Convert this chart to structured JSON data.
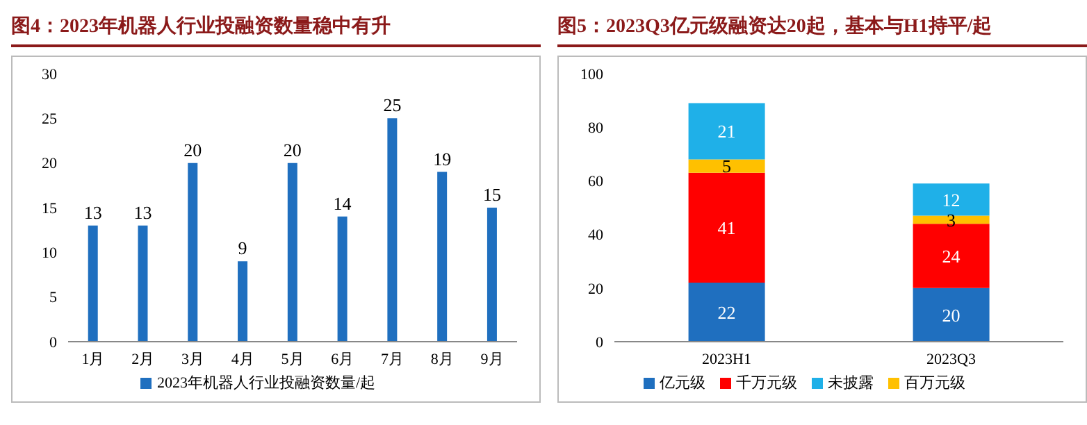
{
  "chart_data": [
    {
      "type": "bar",
      "title": "图4：2023年机器人行业投融资数量稳中有升",
      "categories": [
        "1月",
        "2月",
        "3月",
        "4月",
        "5月",
        "6月",
        "7月",
        "8月",
        "9月"
      ],
      "series": [
        {
          "name": "2023年机器人行业投融资数量/起",
          "color": "#1f6fbf",
          "values": [
            13,
            13,
            20,
            9,
            20,
            14,
            25,
            19,
            15
          ]
        }
      ],
      "ylim": [
        0,
        30
      ],
      "yticks": [
        0,
        5,
        10,
        15,
        20,
        25,
        30
      ],
      "data_labels": true,
      "legend": "bottom",
      "grid": false
    },
    {
      "type": "bar",
      "title": "图5：2023Q3亿元级融资达20起，基本与H1持平/起",
      "categories": [
        "2023H1",
        "2023Q3"
      ],
      "stacked": true,
      "series": [
        {
          "name": "亿元级",
          "color": "#1f6fbf",
          "values": [
            22,
            20
          ]
        },
        {
          "name": "千万元级",
          "color": "#ff0000",
          "values": [
            41,
            24
          ]
        },
        {
          "name": "百万元级",
          "color": "#ffc000",
          "values": [
            5,
            3
          ]
        },
        {
          "name": "未披露",
          "color": "#1fb0e8",
          "values": [
            21,
            12
          ]
        }
      ],
      "ylim": [
        0,
        100
      ],
      "yticks": [
        0,
        20,
        40,
        60,
        80,
        100
      ],
      "data_labels": true,
      "legend": "bottom",
      "grid": false
    }
  ]
}
